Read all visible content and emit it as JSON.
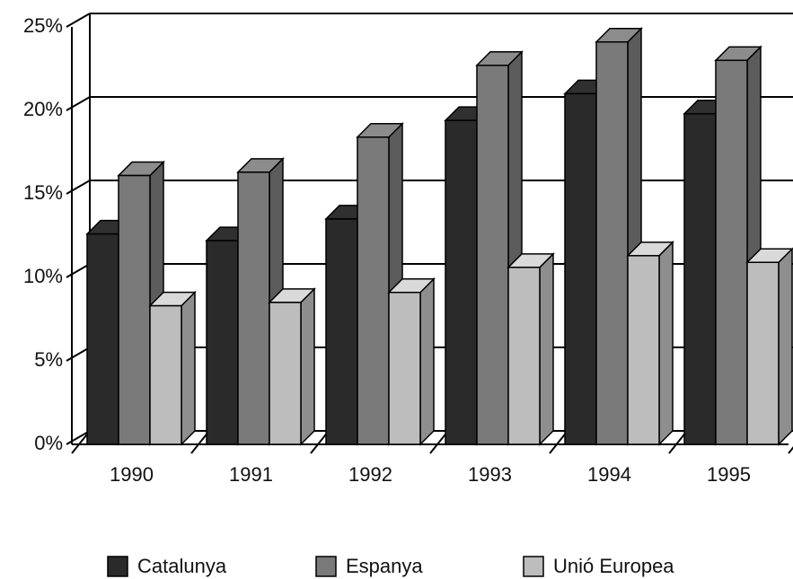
{
  "chart_data": {
    "type": "bar3d",
    "categories": [
      "1990",
      "1991",
      "1992",
      "1993",
      "1994",
      "1995"
    ],
    "series": [
      {
        "name": "Catalunya",
        "color": "#2a2a2a",
        "values": [
          12.6,
          12.2,
          13.5,
          19.4,
          21.0,
          19.8
        ]
      },
      {
        "name": "Espanya",
        "color": "#7a7a7a",
        "values": [
          16.1,
          16.3,
          18.4,
          22.7,
          24.1,
          23.0
        ]
      },
      {
        "name": "Unió Europea",
        "color": "#bdbdbd",
        "values": [
          8.3,
          8.5,
          9.1,
          10.6,
          11.3,
          10.9
        ]
      }
    ],
    "ylim": [
      0,
      25
    ],
    "yticks": [
      {
        "value": 0,
        "label": "0%"
      },
      {
        "value": 5,
        "label": "5%"
      },
      {
        "value": 10,
        "label": "10%"
      },
      {
        "value": 15,
        "label": "15%"
      },
      {
        "value": 20,
        "label": "20%"
      },
      {
        "value": 25,
        "label": "25%"
      }
    ],
    "grid": true,
    "legend": "bottom"
  }
}
